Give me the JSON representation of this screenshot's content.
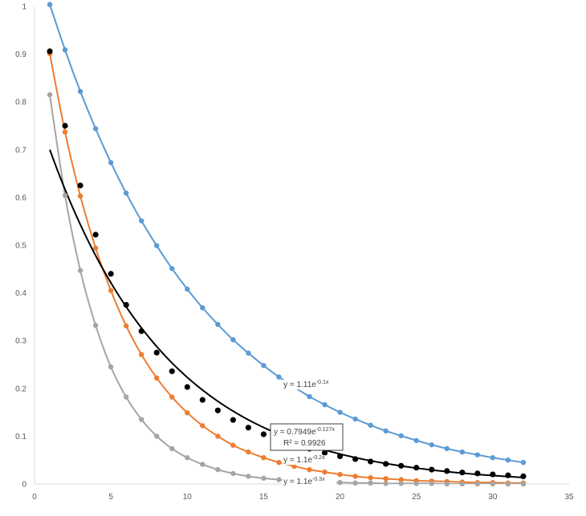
{
  "chart_data": {
    "type": "scatter",
    "xlim": [
      0,
      35
    ],
    "ylim": [
      0,
      1
    ],
    "x_ticks": [
      0,
      5,
      10,
      15,
      20,
      25,
      30,
      35
    ],
    "y_ticks": [
      0,
      0.1,
      0.2,
      0.3,
      0.4,
      0.5,
      0.6,
      0.7,
      0.8,
      0.9,
      1
    ],
    "grid": false,
    "series": [
      {
        "color": "#5b9bd5",
        "marker": "circle",
        "line": "smooth",
        "x": [
          1,
          2,
          3,
          4,
          5,
          6,
          7,
          8,
          9,
          10,
          11,
          12,
          13,
          14,
          15,
          16,
          17,
          18,
          19,
          20,
          21,
          22,
          23,
          24,
          25,
          26,
          27,
          28,
          29,
          30,
          31,
          32
        ],
        "y": [
          1.004,
          0.909,
          0.822,
          0.744,
          0.673,
          0.609,
          0.551,
          0.499,
          0.451,
          0.408,
          0.369,
          0.334,
          0.302,
          0.274,
          0.248,
          0.224,
          0.203,
          0.183,
          0.166,
          0.15,
          0.136,
          0.123,
          0.111,
          0.101,
          0.091,
          0.082,
          0.074,
          0.067,
          0.061,
          0.055,
          0.05,
          0.045
        ]
      },
      {
        "color": "#ed7d31",
        "marker": "circle",
        "line": "smooth",
        "x": [
          1,
          2,
          3,
          4,
          5,
          6,
          7,
          8,
          9,
          10,
          11,
          12,
          13,
          14,
          15,
          16,
          17,
          18,
          19,
          20,
          21,
          22,
          23,
          24,
          25,
          26,
          27,
          28,
          29,
          30,
          31,
          32
        ],
        "y": [
          0.901,
          0.737,
          0.603,
          0.494,
          0.405,
          0.331,
          0.271,
          0.222,
          0.182,
          0.149,
          0.122,
          0.1,
          0.081,
          0.067,
          0.055,
          0.045,
          0.037,
          0.03,
          0.025,
          0.02,
          0.016,
          0.013,
          0.011,
          0.009,
          0.007,
          0.006,
          0.005,
          0.004,
          0.003,
          0.003,
          0.002,
          0.002
        ]
      },
      {
        "color": "#a5a5a5",
        "marker": "circle",
        "line": "smooth",
        "x": [
          1,
          2,
          3,
          4,
          5,
          6,
          7,
          8,
          9,
          10,
          11,
          12,
          13,
          14,
          15,
          16,
          17,
          18,
          19,
          20,
          21,
          22,
          23,
          24,
          25,
          26,
          27,
          28,
          29,
          30,
          31,
          32
        ],
        "y": [
          0.815,
          0.604,
          0.447,
          0.332,
          0.245,
          0.182,
          0.135,
          0.1,
          0.074,
          0.055,
          0.041,
          0.03,
          0.022,
          0.016,
          0.012,
          0.009,
          0.007,
          0.005,
          0.004,
          0.003,
          0.002,
          0.002,
          0.001,
          0.001,
          0.001,
          0.001,
          0.0,
          0.0,
          0.0,
          0.0,
          0.0,
          0.0
        ]
      },
      {
        "color": "#000000",
        "marker": "circle",
        "line": "none",
        "x": [
          1,
          2,
          3,
          4,
          5,
          6,
          7,
          8,
          9,
          10,
          11,
          12,
          13,
          14,
          15,
          16,
          17,
          18,
          19,
          20,
          21,
          22,
          23,
          24,
          25,
          26,
          27,
          28,
          29,
          30,
          31,
          32
        ],
        "y": [
          0.906,
          0.75,
          0.625,
          0.522,
          0.44,
          0.375,
          0.32,
          0.275,
          0.236,
          0.203,
          0.176,
          0.154,
          0.134,
          0.118,
          0.104,
          0.093,
          0.082,
          0.074,
          0.065,
          0.058,
          0.052,
          0.047,
          0.042,
          0.038,
          0.034,
          0.03,
          0.027,
          0.024,
          0.022,
          0.02,
          0.018,
          0.016
        ]
      }
    ],
    "trendline": {
      "color": "#000000",
      "type": "exponential",
      "a": 0.7949,
      "b": -0.127,
      "x_range": [
        1,
        32
      ]
    },
    "annotations": {
      "blue": {
        "base": "y = 1.11e",
        "exp": "-0.1x",
        "x": 16.3,
        "y": 0.203
      },
      "orange": {
        "base": "y = 1.1e",
        "exp": "-0.2x",
        "x": 16.3,
        "y": 0.045
      },
      "gray": {
        "base": "y = 1.1e",
        "exp": "-0.3x",
        "x": 16.3,
        "y": 0.0
      },
      "black_eq": {
        "base": "y = 0.7949e",
        "exp": "-0.127x"
      },
      "black_r2": "R² = 0.9926"
    }
  }
}
